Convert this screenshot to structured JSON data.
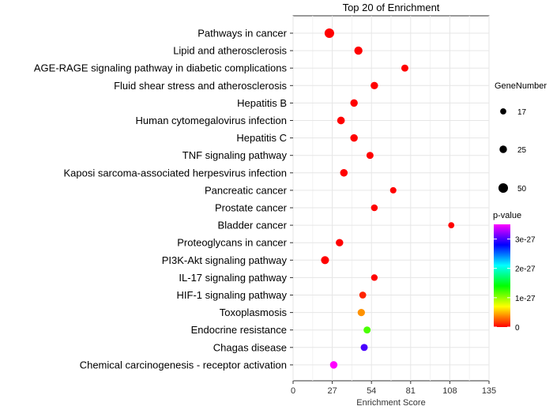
{
  "chart_data": {
    "type": "scatter",
    "title": "Top 20 of  Enrichment",
    "xlabel": "Enrichment Score",
    "ylabel": "",
    "xlim": [
      0,
      135
    ],
    "x_ticks": [
      0,
      27,
      54,
      81,
      108,
      135
    ],
    "grid": true,
    "legend_placement": "right",
    "categories": [
      "Pathways in cancer",
      "Lipid and atherosclerosis",
      "AGE-RAGE signaling pathway in diabetic complications",
      "Fluid shear stress and atherosclerosis",
      "Hepatitis B",
      "Human cytomegalovirus infection",
      "Hepatitis C",
      "TNF signaling pathway",
      "Kaposi sarcoma-associated herpesvirus infection",
      "Pancreatic cancer",
      "Prostate cancer",
      "Bladder cancer",
      "Proteoglycans in cancer",
      "PI3K-Akt signaling pathway",
      "IL-17 signaling pathway",
      "HIF-1 signaling pathway",
      "Toxoplasmosis",
      "Endocrine resistance",
      "Chagas disease",
      "Chemical carcinogenesis - receptor activation"
    ],
    "points": [
      {
        "term": "Pathways in cancer",
        "x": 25,
        "gene_number": 50,
        "p_value": 0
      },
      {
        "term": "Lipid and atherosclerosis",
        "x": 45,
        "gene_number": 32,
        "p_value": 0
      },
      {
        "term": "AGE-RAGE signaling pathway in diabetic complications",
        "x": 77,
        "gene_number": 22,
        "p_value": 0
      },
      {
        "term": "Fluid shear stress and atherosclerosis",
        "x": 56,
        "gene_number": 25,
        "p_value": 0
      },
      {
        "term": "Hepatitis B",
        "x": 42,
        "gene_number": 25,
        "p_value": 0
      },
      {
        "term": "Human cytomegalovirus infection",
        "x": 33,
        "gene_number": 27,
        "p_value": 0
      },
      {
        "term": "Hepatitis C",
        "x": 42,
        "gene_number": 25,
        "p_value": 0
      },
      {
        "term": "TNF signaling pathway",
        "x": 53,
        "gene_number": 22,
        "p_value": 0
      },
      {
        "term": "Kaposi sarcoma-associated herpesvirus infection",
        "x": 35,
        "gene_number": 26,
        "p_value": 0
      },
      {
        "term": "Pancreatic cancer",
        "x": 69,
        "gene_number": 18,
        "p_value": 0
      },
      {
        "term": "Prostate cancer",
        "x": 56,
        "gene_number": 20,
        "p_value": 0
      },
      {
        "term": "Bladder cancer",
        "x": 109,
        "gene_number": 17,
        "p_value": 0
      },
      {
        "term": "Proteoglycans in cancer",
        "x": 32,
        "gene_number": 25,
        "p_value": 0
      },
      {
        "term": "PI3K-Akt signaling pathway",
        "x": 22,
        "gene_number": 30,
        "p_value": 0
      },
      {
        "term": "IL-17 signaling pathway",
        "x": 56,
        "gene_number": 19,
        "p_value": 0
      },
      {
        "term": "HIF-1 signaling pathway",
        "x": 48,
        "gene_number": 21,
        "p_value": 1e-28
      },
      {
        "term": "Toxoplasmosis",
        "x": 47,
        "gene_number": 24,
        "p_value": 4e-28
      },
      {
        "term": "Endocrine resistance",
        "x": 51,
        "gene_number": 22,
        "p_value": 1.2e-27
      },
      {
        "term": "Chagas disease",
        "x": 49,
        "gene_number": 22,
        "p_value": 3e-27
      },
      {
        "term": "Chemical carcinogenesis - receptor activation",
        "x": 28,
        "gene_number": 25,
        "p_value": 3.5e-27
      }
    ],
    "size_legend": {
      "title": "GeneNumber",
      "entries": [
        {
          "label": "17",
          "value": 17
        },
        {
          "label": "25",
          "value": 25
        },
        {
          "label": "50",
          "value": 50
        }
      ]
    },
    "color_legend": {
      "title": "p-value",
      "min": 0,
      "max": 3.5e-27,
      "tick_labels": [
        "0",
        "1e-27",
        "2e-27",
        "3e-27"
      ],
      "tick_values": [
        0,
        1e-27,
        2e-27,
        3e-27
      ],
      "colors": [
        "#ff0000",
        "#ffff00",
        "#00ff00",
        "#00ffff",
        "#0000ff",
        "#ff00ff"
      ]
    }
  }
}
